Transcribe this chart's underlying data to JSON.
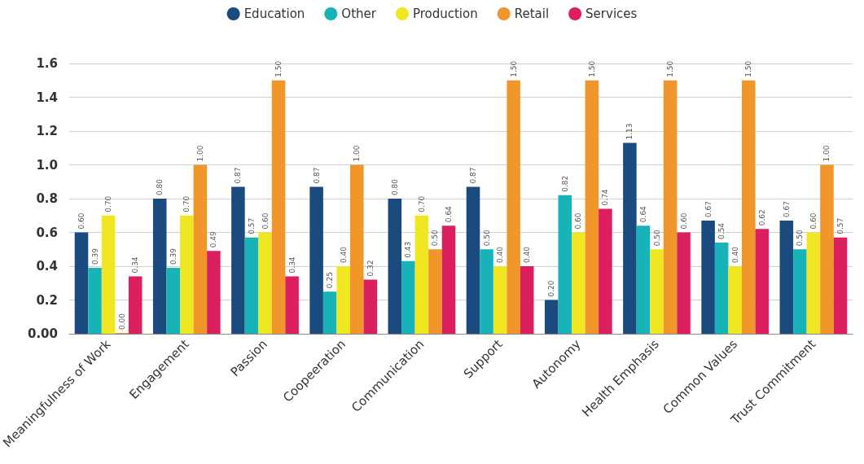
{
  "chart_data": {
    "type": "bar",
    "categories": [
      "Meaningfulness of Work",
      "Engagement",
      "Passion",
      "Coopeeration",
      "Communication",
      "Support",
      "Autonomy",
      "Health Emphasis",
      "Common Values",
      "Trust Commitment"
    ],
    "series": [
      {
        "name": "Education",
        "color": "#1a4a7e",
        "values": [
          0.6,
          0.8,
          0.87,
          0.87,
          0.8,
          0.87,
          0.2,
          1.13,
          0.67,
          0.67
        ],
        "value_labels": [
          "0.60",
          "0.80",
          "0.87",
          "0.87",
          "0.80",
          "0.87",
          "0.20",
          "1.13",
          "0.67",
          "0.67"
        ]
      },
      {
        "name": "Other",
        "color": "#17b3b8",
        "values": [
          0.39,
          0.39,
          0.57,
          0.25,
          0.43,
          0.5,
          0.82,
          0.64,
          0.54,
          0.5
        ],
        "value_labels": [
          "0.39",
          "0.39",
          "0.57",
          "0.25",
          "0.43",
          "0.50",
          "0.82",
          "0.64",
          "0.54",
          "0.50"
        ]
      },
      {
        "name": "Production",
        "color": "#f0e622",
        "values": [
          0.7,
          0.7,
          0.6,
          0.4,
          0.7,
          0.4,
          0.6,
          0.5,
          0.4,
          0.6
        ],
        "value_labels": [
          "0.70",
          "0.70",
          "0.60",
          "0.40",
          "0.70",
          "0.40",
          "0.60",
          "0.50",
          "0.40",
          "0.60"
        ]
      },
      {
        "name": "Retail",
        "color": "#f0962a",
        "values": [
          0,
          1,
          1.5,
          1,
          0.5,
          1.5,
          1.5,
          1.5,
          1.5,
          1
        ],
        "value_labels": [
          "0.00",
          "1.00",
          "1.50",
          "1.00",
          "0.50",
          "1.50",
          "1.50",
          "1.50",
          "1.50",
          "1.00"
        ]
      },
      {
        "name": "Services",
        "color": "#dc1f5e",
        "values": [
          0.34,
          0.49,
          0.34,
          0.32,
          0.64,
          0.4,
          0.74,
          0.6,
          0.62,
          0.57
        ],
        "value_labels": [
          "0.34",
          "0.49",
          "0.34",
          "0.32",
          "0.64",
          "0.40",
          "0.74",
          "0.60",
          "0.62",
          "0.57"
        ]
      }
    ],
    "ylim": [
      0,
      1.6
    ],
    "yticks": [
      {
        "value": 0,
        "label": "0.00"
      },
      {
        "value": 0.2,
        "label": "0.2"
      },
      {
        "value": 0.4,
        "label": "0.4"
      },
      {
        "value": 0.6,
        "label": "0.6"
      },
      {
        "value": 0.8,
        "label": "0.8"
      },
      {
        "value": 1,
        "label": "1.0"
      },
      {
        "value": 1.2,
        "label": "1.2"
      },
      {
        "value": 1.4,
        "label": "1.4"
      },
      {
        "value": 1.6,
        "label": "1.6"
      }
    ],
    "grid": "y",
    "legend": "top"
  }
}
